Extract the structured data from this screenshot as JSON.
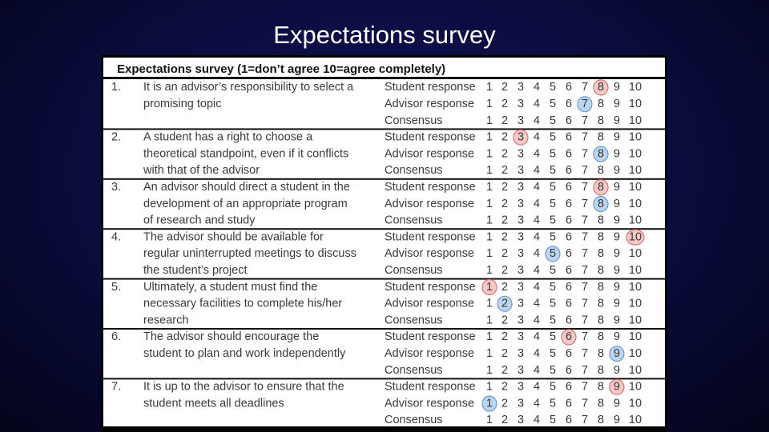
{
  "slide": {
    "title": "Expectations survey"
  },
  "table": {
    "header": "Expectations survey (1=don’t agree 10=agree completely)",
    "scale": [
      1,
      2,
      3,
      4,
      5,
      6,
      7,
      8,
      9,
      10
    ],
    "items": [
      {
        "number": "1.",
        "statement": [
          "It is an advisor’s responsibility to select a",
          "promising topic"
        ],
        "responses": [
          {
            "label": "Student response",
            "circled": 8
          },
          {
            "label": "Advisor response",
            "circled": 7
          },
          {
            "label": "Consensus"
          }
        ]
      },
      {
        "number": "2.",
        "statement": [
          "A student has a right to choose a",
          "theoretical standpoint, even if it conflicts",
          "with that of the advisor"
        ],
        "responses": [
          {
            "label": "Student response",
            "circled": 3
          },
          {
            "label": "Advisor response",
            "circled": 8
          },
          {
            "label": "Consensus"
          }
        ]
      },
      {
        "number": "3.",
        "statement": [
          "An advisor should direct a student in the",
          "development of an appropriate program",
          "of research and study"
        ],
        "responses": [
          {
            "label": "Student response",
            "circled": 8
          },
          {
            "label": "Advisor response",
            "circled": 8
          },
          {
            "label": "Consensus"
          }
        ]
      },
      {
        "number": "4.",
        "statement": [
          "The advisor should be available for",
          "regular uninterrupted meetings to discuss",
          "the student’s project"
        ],
        "responses": [
          {
            "label": "Student response",
            "circled": 10
          },
          {
            "label": "Advisor response",
            "circled": 5
          },
          {
            "label": "Consensus"
          }
        ]
      },
      {
        "number": "5.",
        "statement": [
          "Ultimately, a student must find the",
          "necessary facilities to complete his/her",
          "research"
        ],
        "responses": [
          {
            "label": "Student response",
            "circled": 1
          },
          {
            "label": "Advisor response",
            "circled": 2
          },
          {
            "label": "Consensus"
          }
        ]
      },
      {
        "number": "6.",
        "statement": [
          "The advisor should encourage the",
          "student to plan and work independently"
        ],
        "responses": [
          {
            "label": "Student response",
            "circled": 6
          },
          {
            "label": "Advisor response",
            "circled": 9
          },
          {
            "label": "Consensus"
          }
        ]
      },
      {
        "number": "7.",
        "statement": [
          "It is up to the advisor to ensure that the",
          "student meets all deadlines"
        ],
        "responses": [
          {
            "label": "Student response",
            "circled": 9
          },
          {
            "label": "Advisor response",
            "circled": 1
          },
          {
            "label": "Consensus"
          }
        ]
      }
    ]
  }
}
